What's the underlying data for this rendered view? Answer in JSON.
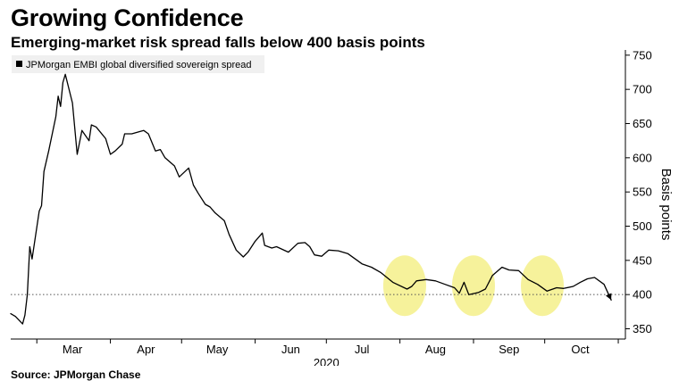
{
  "header": {
    "title": "Growing Confidence",
    "subtitle": "Emerging-market risk spread falls below 400 basis points"
  },
  "footer": {
    "source": "Source: JPMorgan Chase"
  },
  "chart_data": {
    "type": "line",
    "title": "Growing Confidence",
    "subtitle": "Emerging-market risk spread falls below 400 basis points",
    "ylabel": "Basis points",
    "year_label": "2020",
    "y_axis_side": "right",
    "ylim": [
      335,
      755
    ],
    "yticks": [
      350,
      400,
      450,
      500,
      550,
      600,
      650,
      700,
      750
    ],
    "x_ticks": [
      "Mar",
      "Apr",
      "May",
      "Jun",
      "Jul",
      "Aug",
      "Sep",
      "Oct"
    ],
    "legend": {
      "placement": "top-left",
      "entries": [
        "JPMorgan EMBI global diversified sovereign spread"
      ]
    },
    "reference_line": {
      "y": 400,
      "style": "dotted"
    },
    "highlights": [
      {
        "x": "2020-08-03",
        "y": 413,
        "color": "#f5f08a"
      },
      {
        "x": "2020-09-01",
        "y": 413,
        "color": "#f5f08a"
      },
      {
        "x": "2020-09-30",
        "y": 413,
        "color": "#f5f08a"
      }
    ],
    "series": [
      {
        "name": "JPMorgan EMBI global diversified sovereign spread",
        "color": "#000000",
        "points": [
          [
            "2020-02-19",
            372
          ],
          [
            "2020-02-21",
            368
          ],
          [
            "2020-02-24",
            357
          ],
          [
            "2020-02-25",
            370
          ],
          [
            "2020-02-26",
            400
          ],
          [
            "2020-02-27",
            470
          ],
          [
            "2020-02-28",
            452
          ],
          [
            "2020-03-02",
            522
          ],
          [
            "2020-03-03",
            530
          ],
          [
            "2020-03-04",
            580
          ],
          [
            "2020-03-06",
            610
          ],
          [
            "2020-03-09",
            660
          ],
          [
            "2020-03-10",
            690
          ],
          [
            "2020-03-11",
            675
          ],
          [
            "2020-03-12",
            710
          ],
          [
            "2020-03-13",
            722
          ],
          [
            "2020-03-16",
            680
          ],
          [
            "2020-03-18",
            605
          ],
          [
            "2020-03-20",
            640
          ],
          [
            "2020-03-23",
            625
          ],
          [
            "2020-03-24",
            648
          ],
          [
            "2020-03-26",
            645
          ],
          [
            "2020-03-30",
            628
          ],
          [
            "2020-04-01",
            605
          ],
          [
            "2020-04-03",
            610
          ],
          [
            "2020-04-06",
            620
          ],
          [
            "2020-04-07",
            635
          ],
          [
            "2020-04-10",
            635
          ],
          [
            "2020-04-13",
            638
          ],
          [
            "2020-04-15",
            640
          ],
          [
            "2020-04-17",
            635
          ],
          [
            "2020-04-20",
            610
          ],
          [
            "2020-04-22",
            612
          ],
          [
            "2020-04-24",
            600
          ],
          [
            "2020-04-28",
            588
          ],
          [
            "2020-04-30",
            572
          ],
          [
            "2020-05-04",
            585
          ],
          [
            "2020-05-06",
            560
          ],
          [
            "2020-05-08",
            548
          ],
          [
            "2020-05-11",
            532
          ],
          [
            "2020-05-13",
            528
          ],
          [
            "2020-05-15",
            520
          ],
          [
            "2020-05-19",
            508
          ],
          [
            "2020-05-21",
            488
          ],
          [
            "2020-05-24",
            465
          ],
          [
            "2020-05-27",
            455
          ],
          [
            "2020-05-29",
            462
          ],
          [
            "2020-06-01",
            478
          ],
          [
            "2020-06-04",
            490
          ],
          [
            "2020-06-05",
            472
          ],
          [
            "2020-06-08",
            468
          ],
          [
            "2020-06-10",
            470
          ],
          [
            "2020-06-15",
            462
          ],
          [
            "2020-06-19",
            475
          ],
          [
            "2020-06-22",
            476
          ],
          [
            "2020-06-24",
            470
          ],
          [
            "2020-06-26",
            458
          ],
          [
            "2020-06-29",
            456
          ],
          [
            "2020-07-02",
            465
          ],
          [
            "2020-07-06",
            464
          ],
          [
            "2020-07-10",
            460
          ],
          [
            "2020-07-14",
            450
          ],
          [
            "2020-07-16",
            445
          ],
          [
            "2020-07-20",
            440
          ],
          [
            "2020-07-24",
            432
          ],
          [
            "2020-07-29",
            418
          ],
          [
            "2020-08-04",
            408
          ],
          [
            "2020-08-06",
            412
          ],
          [
            "2020-08-08",
            420
          ],
          [
            "2020-08-12",
            422
          ],
          [
            "2020-08-16",
            420
          ],
          [
            "2020-08-20",
            415
          ],
          [
            "2020-08-24",
            410
          ],
          [
            "2020-08-26",
            402
          ],
          [
            "2020-08-28",
            418
          ],
          [
            "2020-08-30",
            400
          ],
          [
            "2020-09-03",
            403
          ],
          [
            "2020-09-06",
            408
          ],
          [
            "2020-09-09",
            428
          ],
          [
            "2020-09-13",
            440
          ],
          [
            "2020-09-16",
            436
          ],
          [
            "2020-09-20",
            435
          ],
          [
            "2020-09-24",
            422
          ],
          [
            "2020-09-28",
            415
          ],
          [
            "2020-10-02",
            405
          ],
          [
            "2020-10-06",
            410
          ],
          [
            "2020-10-09",
            409
          ],
          [
            "2020-10-13",
            412
          ],
          [
            "2020-10-16",
            418
          ],
          [
            "2020-10-19",
            423
          ],
          [
            "2020-10-22",
            425
          ],
          [
            "2020-10-26",
            415
          ],
          [
            "2020-10-29",
            392
          ]
        ]
      }
    ]
  }
}
